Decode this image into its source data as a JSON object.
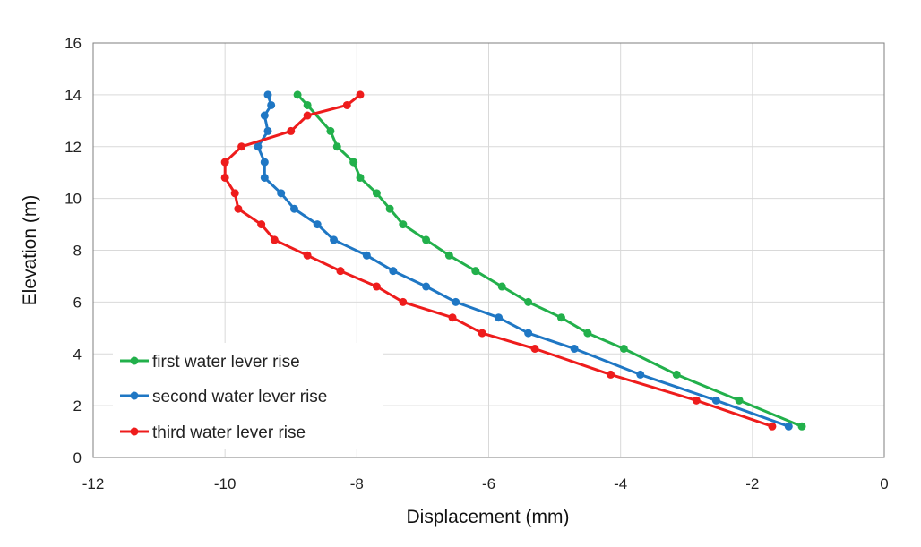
{
  "chart_data": {
    "type": "line",
    "title": "",
    "xlabel": "Displacement (mm)",
    "ylabel": "Elevation (m)",
    "xlim": [
      -12,
      0
    ],
    "ylim": [
      0,
      16
    ],
    "xticks": [
      -12,
      -10,
      -8,
      -6,
      -4,
      -2,
      0
    ],
    "yticks": [
      0,
      2,
      4,
      6,
      8,
      10,
      12,
      14,
      16
    ],
    "grid": "vertical and horizontal",
    "legend_position": "bottom-left",
    "series": [
      {
        "name": "first water lever rise",
        "color": "#22b04b",
        "points": [
          [
            -1.25,
            1.2
          ],
          [
            -2.2,
            2.2
          ],
          [
            -3.15,
            3.2
          ],
          [
            -3.95,
            4.2
          ],
          [
            -4.5,
            4.8
          ],
          [
            -4.9,
            5.4
          ],
          [
            -5.4,
            6.0
          ],
          [
            -5.8,
            6.6
          ],
          [
            -6.2,
            7.2
          ],
          [
            -6.6,
            7.8
          ],
          [
            -6.95,
            8.4
          ],
          [
            -7.3,
            9.0
          ],
          [
            -7.5,
            9.6
          ],
          [
            -7.7,
            10.2
          ],
          [
            -7.95,
            10.8
          ],
          [
            -8.05,
            11.4
          ],
          [
            -8.3,
            12.0
          ],
          [
            -8.4,
            12.6
          ],
          [
            -8.75,
            13.6
          ],
          [
            -8.9,
            14.0
          ]
        ]
      },
      {
        "name": "second water lever rise",
        "color": "#1f77c4",
        "points": [
          [
            -1.45,
            1.2
          ],
          [
            -2.55,
            2.2
          ],
          [
            -3.7,
            3.2
          ],
          [
            -4.7,
            4.2
          ],
          [
            -5.4,
            4.8
          ],
          [
            -5.85,
            5.4
          ],
          [
            -6.5,
            6.0
          ],
          [
            -6.95,
            6.6
          ],
          [
            -7.45,
            7.2
          ],
          [
            -7.85,
            7.8
          ],
          [
            -8.35,
            8.4
          ],
          [
            -8.6,
            9.0
          ],
          [
            -8.95,
            9.6
          ],
          [
            -9.15,
            10.2
          ],
          [
            -9.4,
            10.8
          ],
          [
            -9.4,
            11.4
          ],
          [
            -9.5,
            12.0
          ],
          [
            -9.35,
            12.6
          ],
          [
            -9.4,
            13.2
          ],
          [
            -9.3,
            13.6
          ],
          [
            -9.35,
            14.0
          ]
        ]
      },
      {
        "name": "third water lever rise",
        "color": "#ee1c1c",
        "points": [
          [
            -1.7,
            1.2
          ],
          [
            -2.85,
            2.2
          ],
          [
            -4.15,
            3.2
          ],
          [
            -5.3,
            4.2
          ],
          [
            -6.1,
            4.8
          ],
          [
            -6.55,
            5.4
          ],
          [
            -7.3,
            6.0
          ],
          [
            -7.7,
            6.6
          ],
          [
            -8.25,
            7.2
          ],
          [
            -8.75,
            7.8
          ],
          [
            -9.25,
            8.4
          ],
          [
            -9.45,
            9.0
          ],
          [
            -9.8,
            9.6
          ],
          [
            -9.85,
            10.2
          ],
          [
            -10.0,
            10.8
          ],
          [
            -10.0,
            11.4
          ],
          [
            -9.75,
            12.0
          ],
          [
            -9.0,
            12.6
          ],
          [
            -8.75,
            13.2
          ],
          [
            -8.15,
            13.6
          ],
          [
            -7.95,
            14.0
          ]
        ]
      }
    ]
  }
}
